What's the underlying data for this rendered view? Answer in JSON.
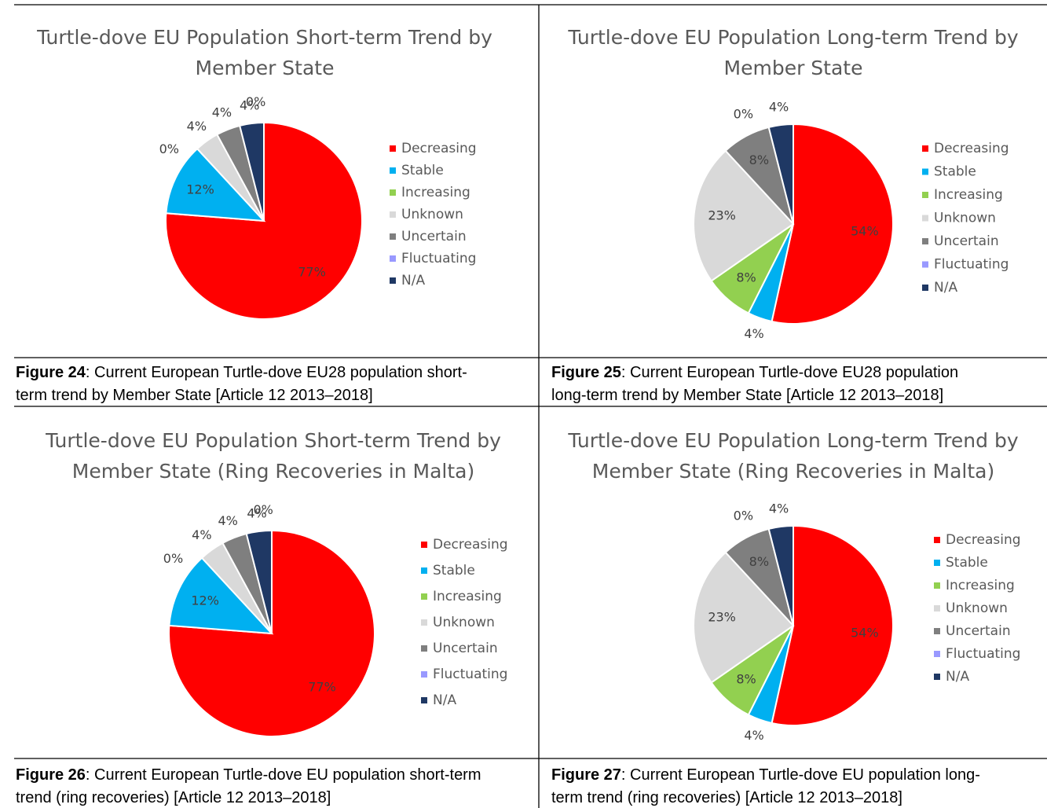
{
  "chart_data": [
    {
      "type": "pie",
      "title": [
        "Turtle-dove EU Population Short-term Trend by",
        "Member State"
      ],
      "categories": [
        "Decreasing",
        "Stable",
        "Increasing",
        "Unknown",
        "Uncertain",
        "Fluctuating",
        "N/A"
      ],
      "values": [
        77,
        12,
        0,
        4,
        4,
        0,
        4
      ],
      "value_labels": [
        "77%",
        "12%",
        "0%",
        "4%",
        "4%",
        "0%",
        "4%"
      ],
      "colors": [
        "#ff0000",
        "#00b0f0",
        "#92d050",
        "#d9d9d9",
        "#7f7f7f",
        "#9999ff",
        "#1f3864"
      ],
      "legend": "right"
    },
    {
      "type": "pie",
      "title": [
        "Turtle-dove EU Population Long-term Trend by",
        "Member State"
      ],
      "categories": [
        "Decreasing",
        "Stable",
        "Increasing",
        "Unknown",
        "Uncertain",
        "Fluctuating",
        "N/A"
      ],
      "values": [
        54,
        4,
        8,
        23,
        8,
        0,
        4
      ],
      "value_labels": [
        "54%",
        "4%",
        "8%",
        "23%",
        "8%",
        "0%",
        "4%"
      ],
      "colors": [
        "#ff0000",
        "#00b0f0",
        "#92d050",
        "#d9d9d9",
        "#7f7f7f",
        "#9999ff",
        "#1f3864"
      ],
      "legend": "right"
    },
    {
      "type": "pie",
      "title": [
        "Turtle-dove EU Population Short-term Trend by",
        "Member State (Ring Recoveries in Malta)"
      ],
      "categories": [
        "Decreasing",
        "Stable",
        "Increasing",
        "Unknown",
        "Uncertain",
        "Fluctuating",
        "N/A"
      ],
      "values": [
        77,
        12,
        0,
        4,
        4,
        0,
        4
      ],
      "value_labels": [
        "77%",
        "12%",
        "0%",
        "4%",
        "4%",
        "0%",
        "4%"
      ],
      "colors": [
        "#ff0000",
        "#00b0f0",
        "#92d050",
        "#d9d9d9",
        "#7f7f7f",
        "#9999ff",
        "#1f3864"
      ],
      "legend": "right"
    },
    {
      "type": "pie",
      "title": [
        "Turtle-dove EU Population Long-term Trend by",
        "Member State (Ring Recoveries in Malta)"
      ],
      "categories": [
        "Decreasing",
        "Stable",
        "Increasing",
        "Unknown",
        "Uncertain",
        "Fluctuating",
        "N/A"
      ],
      "values": [
        54,
        4,
        8,
        23,
        8,
        0,
        4
      ],
      "value_labels": [
        "54%",
        "4%",
        "8%",
        "23%",
        "8%",
        "0%",
        "4%"
      ],
      "colors": [
        "#ff0000",
        "#00b0f0",
        "#92d050",
        "#d9d9d9",
        "#7f7f7f",
        "#9999ff",
        "#1f3864"
      ],
      "legend": "right"
    }
  ],
  "captions": [
    {
      "label": "Figure 24",
      "lines": [
        ": Current European Turtle-dove EU28 population short-",
        "term trend by Member State [Article 12 2013–2018]"
      ]
    },
    {
      "label": "Figure 25",
      "lines": [
        ": Current European Turtle-dove EU28 population",
        "long-term trend by Member State [Article 12 2013–2018]"
      ]
    },
    {
      "label": "Figure 26",
      "lines": [
        ": Current European Turtle-dove EU population short-term",
        "trend (ring recoveries) [Article 12 2013–2018]"
      ]
    },
    {
      "label": "Figure 27",
      "lines": [
        ": Current European Turtle-dove EU population long-",
        "term trend (ring recoveries) [Article 12 2013–2018]"
      ]
    }
  ]
}
